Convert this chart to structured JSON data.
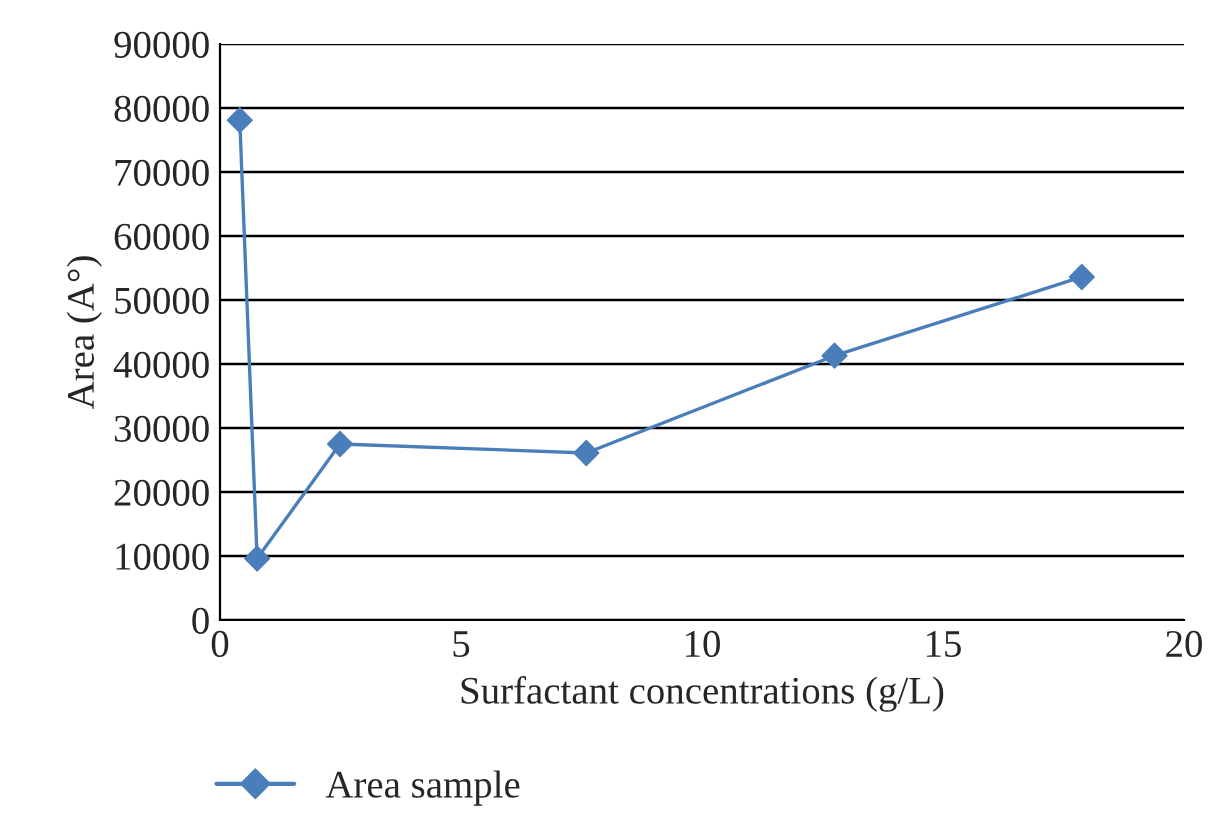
{
  "chart_data": {
    "type": "line",
    "xlabel": "Surfactant concentrations (g/L)",
    "ylabel": "Area (A°)",
    "x": [
      0.41,
      0.77,
      2.49,
      7.6,
      12.75,
      17.88
    ],
    "series": [
      {
        "name": "Area sample",
        "color": "#4a7ebb",
        "values": [
          78100,
          9600,
          27500,
          26100,
          41300,
          53600
        ]
      }
    ],
    "xlim": [
      0,
      20
    ],
    "xticks": [
      0,
      5,
      10,
      15,
      20
    ],
    "ylim": [
      0,
      90000
    ],
    "yticks": [
      0,
      10000,
      20000,
      30000,
      40000,
      50000,
      60000,
      70000,
      80000,
      90000
    ],
    "grid": "y",
    "legend": "bottom left",
    "marker": "diamond",
    "line_style": "solid"
  }
}
